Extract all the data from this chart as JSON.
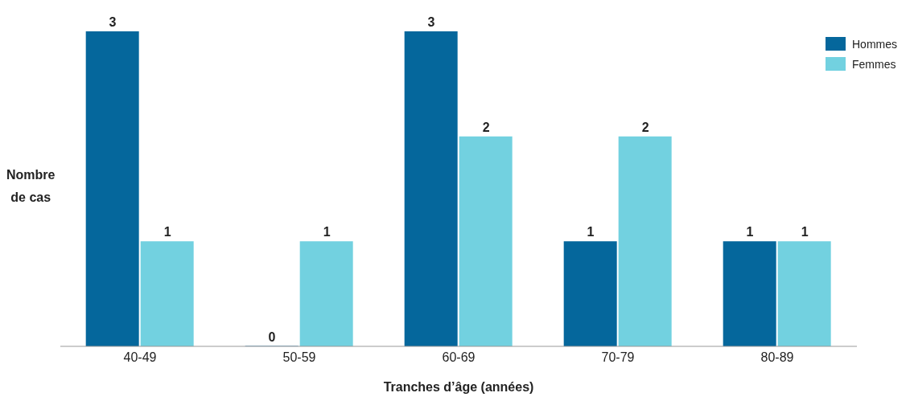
{
  "chart_data": {
    "type": "bar",
    "xlabel": "Tranches d’âge (années)",
    "ylabel": "Nombre\nde cas",
    "categories": [
      "40-49",
      "50-59",
      "60-69",
      "70-79",
      "80-89"
    ],
    "series": [
      {
        "name": "Hommes",
        "color": "#05679c",
        "values": [
          3,
          0,
          3,
          1,
          1
        ]
      },
      {
        "name": "Femmes",
        "color": "#72d1e0",
        "values": [
          1,
          1,
          2,
          2,
          1
        ]
      }
    ],
    "data_labels": true,
    "legend": "top right"
  }
}
